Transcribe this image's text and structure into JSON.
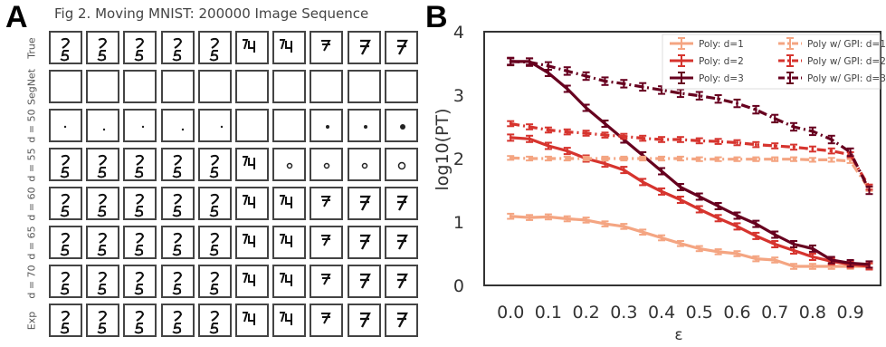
{
  "panel_a": {
    "letter": "A",
    "title": "Fig 2. Moving MNIST: 200000 Image Sequence",
    "row_labels": [
      "True",
      "SegNet",
      "d = 50",
      "d = 55",
      "d = 60",
      "d = 65",
      "d = 70",
      "Exp"
    ],
    "frame_count": 10
  },
  "panel_b": {
    "letter": "B"
  },
  "chart_data": {
    "type": "line",
    "xlabel": "ε",
    "ylabel": "log10(PT)",
    "xlim": [
      -0.07,
      0.98
    ],
    "ylim": [
      0,
      4
    ],
    "xticks": [
      0.0,
      0.1,
      0.2,
      0.3,
      0.4,
      0.5,
      0.6,
      0.7,
      0.8,
      0.9
    ],
    "xtick_labels": [
      "0.0",
      "0.1",
      "0.2",
      "0.3",
      "0.4",
      "0.5",
      "0.6",
      "0.7",
      "0.8",
      "0.9"
    ],
    "yticks": [
      0,
      1,
      2,
      3,
      4
    ],
    "ytick_labels": [
      "0",
      "1",
      "2",
      "3",
      "4"
    ],
    "grid": false,
    "legend_position": "top-right",
    "x": [
      0.0,
      0.05,
      0.1,
      0.15,
      0.2,
      0.25,
      0.3,
      0.35,
      0.4,
      0.45,
      0.5,
      0.55,
      0.6,
      0.65,
      0.7,
      0.75,
      0.8,
      0.85,
      0.9,
      0.95
    ],
    "series": [
      {
        "name": "Poly: d=1",
        "color": "#f4a582",
        "style": "solid",
        "error": 0.04,
        "values": [
          1.09,
          1.07,
          1.08,
          1.05,
          1.03,
          0.97,
          0.93,
          0.84,
          0.75,
          0.66,
          0.58,
          0.53,
          0.5,
          0.42,
          0.4,
          0.3,
          0.3,
          0.3,
          0.3,
          0.3
        ]
      },
      {
        "name": "Poly: d=2",
        "color": "#d6342e",
        "style": "solid",
        "error": 0.05,
        "values": [
          2.33,
          2.31,
          2.2,
          2.12,
          2.0,
          1.92,
          1.82,
          1.63,
          1.48,
          1.35,
          1.2,
          1.06,
          0.93,
          0.78,
          0.65,
          0.55,
          0.45,
          0.38,
          0.33,
          0.3
        ]
      },
      {
        "name": "Poly: d=3",
        "color": "#67001f",
        "style": "solid",
        "error": 0.05,
        "values": [
          3.53,
          3.53,
          3.35,
          3.1,
          2.8,
          2.55,
          2.3,
          2.05,
          1.8,
          1.55,
          1.4,
          1.25,
          1.1,
          0.97,
          0.8,
          0.65,
          0.58,
          0.4,
          0.35,
          0.33
        ]
      },
      {
        "name": "Poly w/ GPI: d=1",
        "color": "#f4a582",
        "style": "dashdot",
        "error": 0.03,
        "values": [
          2.01,
          2.0,
          2.0,
          2.0,
          2.0,
          2.0,
          2.0,
          2.0,
          2.0,
          2.0,
          1.99,
          1.99,
          1.99,
          1.99,
          1.99,
          1.99,
          1.98,
          1.98,
          1.96,
          1.52
        ]
      },
      {
        "name": "Poly w/ GPI: d=2",
        "color": "#d6342e",
        "style": "dashdot",
        "error": 0.04,
        "values": [
          2.55,
          2.5,
          2.45,
          2.42,
          2.4,
          2.37,
          2.35,
          2.32,
          2.3,
          2.3,
          2.28,
          2.27,
          2.25,
          2.22,
          2.2,
          2.18,
          2.15,
          2.12,
          2.06,
          1.55
        ]
      },
      {
        "name": "Poly w/ GPI: d=3",
        "color": "#67001f",
        "style": "dashdot",
        "error": 0.06,
        "values": [
          3.53,
          3.52,
          3.46,
          3.38,
          3.3,
          3.22,
          3.18,
          3.13,
          3.08,
          3.03,
          2.99,
          2.94,
          2.87,
          2.77,
          2.63,
          2.5,
          2.43,
          2.3,
          2.1,
          1.5
        ]
      }
    ]
  }
}
